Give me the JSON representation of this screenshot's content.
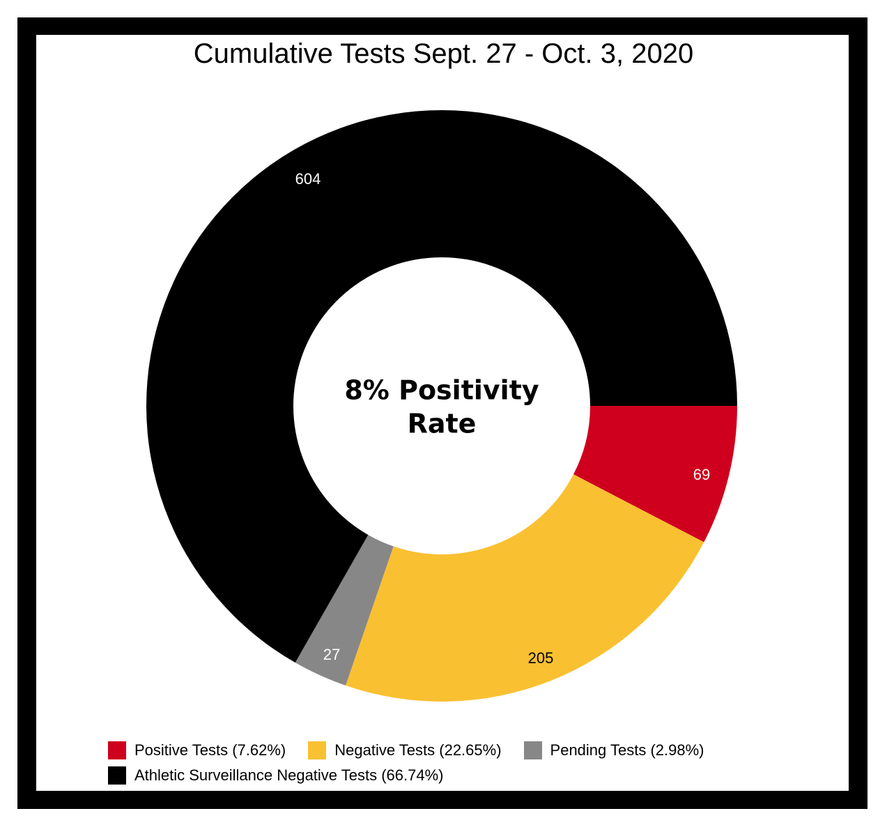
{
  "chart_data": {
    "type": "pie",
    "title": "Cumulative Tests Sept. 27 - Oct. 3, 2020",
    "center_text": [
      "8% Positivity",
      "Rate"
    ],
    "slices": [
      {
        "label": "Positive Tests (7.62%)",
        "value": 69,
        "color": "#cf001d",
        "label_color": "#ffffff"
      },
      {
        "label": "Negative Tests (22.65%)",
        "value": 205,
        "color": "#f9c031",
        "label_color": "#000000"
      },
      {
        "label": "Pending Tests (2.98%)",
        "value": 27,
        "color": "#878787",
        "label_color": "#ffffff"
      },
      {
        "label": "Athletic Surveillance Negative Tests (66.74%)",
        "value": 604,
        "color": "#000000",
        "label_color": "#ffffff"
      }
    ],
    "legend_placement": "bottom"
  }
}
